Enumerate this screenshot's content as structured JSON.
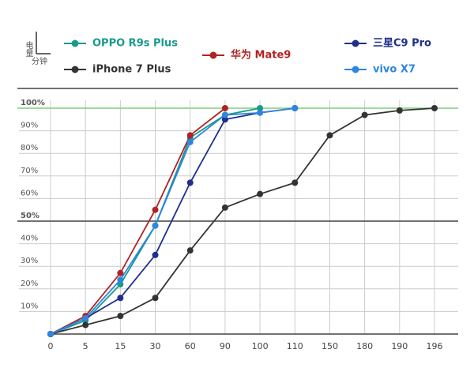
{
  "chart_data": {
    "type": "line",
    "y_axis_label": "电量",
    "x_axis_label": "分钟",
    "categories": [
      "0",
      "5",
      "15",
      "30",
      "60",
      "90",
      "100",
      "110",
      "150",
      "180",
      "190",
      "196"
    ],
    "ylim": [
      0,
      100
    ],
    "yticks": [
      {
        "value": 10,
        "label": "10%"
      },
      {
        "value": 20,
        "label": "20%"
      },
      {
        "value": 30,
        "label": "30%"
      },
      {
        "value": 40,
        "label": "40%"
      },
      {
        "value": 50,
        "label": "50%"
      },
      {
        "value": 60,
        "label": "60%"
      },
      {
        "value": 70,
        "label": "70%"
      },
      {
        "value": 80,
        "label": "80%"
      },
      {
        "value": 90,
        "label": "90%"
      },
      {
        "value": 100,
        "label": "100%"
      }
    ],
    "grid": true,
    "series": [
      {
        "name": "OPPO R9s Plus",
        "color": "#1a9a8a",
        "values": [
          0,
          6,
          22,
          48,
          87,
          97,
          100,
          null,
          null,
          null,
          null,
          null
        ]
      },
      {
        "name": "华为 Mate9",
        "color": "#b22222",
        "values": [
          0,
          8,
          27,
          55,
          88,
          100,
          null,
          null,
          null,
          null,
          null,
          null
        ]
      },
      {
        "name": "三星C9 Pro",
        "color": "#1f2f8a",
        "values": [
          0,
          7,
          16,
          35,
          67,
          95,
          98,
          100,
          null,
          null,
          null,
          null
        ]
      },
      {
        "name": "iPhone 7 Plus",
        "color": "#333333",
        "values": [
          0,
          4,
          8,
          16,
          37,
          56,
          62,
          67,
          88,
          97,
          99,
          100
        ]
      },
      {
        "name": "vivo X7",
        "color": "#2e86de",
        "values": [
          0,
          7,
          24,
          48,
          85,
          97,
          98,
          100,
          null,
          null,
          null,
          null
        ]
      }
    ]
  }
}
